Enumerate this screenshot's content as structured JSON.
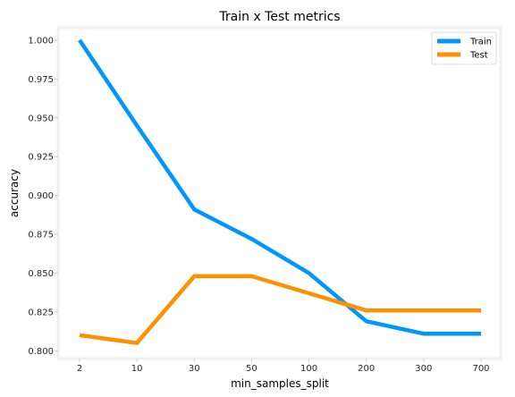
{
  "chart_data": {
    "type": "line",
    "title": "Train x Test metrics",
    "xlabel": "min_samples_split",
    "ylabel": "accuracy",
    "categories": [
      "2",
      "10",
      "30",
      "50",
      "100",
      "200",
      "300",
      "700"
    ],
    "series": [
      {
        "name": "Train",
        "color": "#0096ff",
        "values": [
          1.0,
          0.945,
          0.891,
          0.872,
          0.85,
          0.819,
          0.811,
          0.811
        ]
      },
      {
        "name": "Test",
        "color": "#ff9000",
        "values": [
          0.81,
          0.805,
          0.848,
          0.848,
          0.837,
          0.826,
          0.826,
          0.826
        ]
      }
    ],
    "ylim": [
      0.795,
      1.008
    ],
    "yticks": [
      "0.800",
      "0.825",
      "0.850",
      "0.875",
      "0.900",
      "0.925",
      "0.950",
      "0.975",
      "1.000"
    ],
    "legend": "top-right",
    "grid": false
  }
}
